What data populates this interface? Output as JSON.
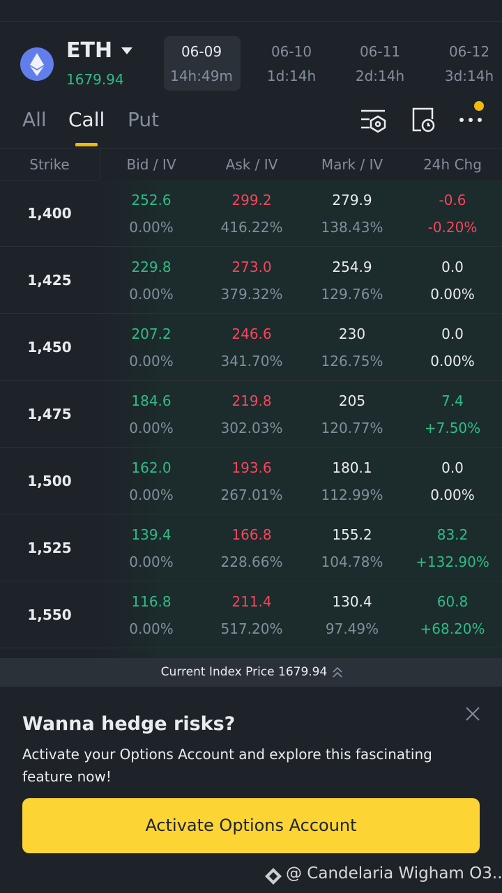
{
  "header": {
    "asset": "ETH",
    "price": "1679.94"
  },
  "dates": [
    {
      "date": "06-09",
      "remaining": "14h:49m"
    },
    {
      "date": "06-10",
      "remaining": "1d:14h"
    },
    {
      "date": "06-11",
      "remaining": "2d:14h"
    },
    {
      "date": "06-12",
      "remaining": "3d:14h"
    }
  ],
  "tabs": [
    "All",
    "Call",
    "Put"
  ],
  "table": {
    "columns": [
      "Strike",
      "Bid / IV",
      "Ask / IV",
      "Mark / IV",
      "24h Chg"
    ],
    "rows": [
      {
        "strike": "1,400",
        "bid": "252.6",
        "bid_iv": "0.00%",
        "ask": "299.2",
        "ask_iv": "416.22%",
        "mark": "279.9",
        "mark_iv": "138.43%",
        "chg": "-0.6",
        "chg_pct": "-0.20%"
      },
      {
        "strike": "1,425",
        "bid": "229.8",
        "bid_iv": "0.00%",
        "ask": "273.0",
        "ask_iv": "379.32%",
        "mark": "254.9",
        "mark_iv": "129.76%",
        "chg": "0.0",
        "chg_pct": "0.00%"
      },
      {
        "strike": "1,450",
        "bid": "207.2",
        "bid_iv": "0.00%",
        "ask": "246.6",
        "ask_iv": "341.70%",
        "mark": "230",
        "mark_iv": "126.75%",
        "chg": "0.0",
        "chg_pct": "0.00%"
      },
      {
        "strike": "1,475",
        "bid": "184.6",
        "bid_iv": "0.00%",
        "ask": "219.8",
        "ask_iv": "302.03%",
        "mark": "205",
        "mark_iv": "120.77%",
        "chg": "7.4",
        "chg_pct": "+7.50%"
      },
      {
        "strike": "1,500",
        "bid": "162.0",
        "bid_iv": "0.00%",
        "ask": "193.6",
        "ask_iv": "267.01%",
        "mark": "180.1",
        "mark_iv": "112.99%",
        "chg": "0.0",
        "chg_pct": "0.00%"
      },
      {
        "strike": "1,525",
        "bid": "139.4",
        "bid_iv": "0.00%",
        "ask": "166.8",
        "ask_iv": "228.66%",
        "mark": "155.2",
        "mark_iv": "104.78%",
        "chg": "83.2",
        "chg_pct": "+132.90%"
      },
      {
        "strike": "1,550",
        "bid": "116.8",
        "bid_iv": "0.00%",
        "ask": "211.4",
        "ask_iv": "517.20%",
        "mark": "130.4",
        "mark_iv": "97.49%",
        "chg": "60.8",
        "chg_pct": "+68.20%"
      }
    ]
  },
  "index_bar": {
    "label": "Current Index Price",
    "value": "1679.94"
  },
  "banner": {
    "title": "Wanna hedge risks?",
    "text": "Activate your Options Account and explore this fascinating feature now!",
    "button": "Activate Options Account"
  },
  "watermark": "@ Candelaria Wigham O3..."
}
